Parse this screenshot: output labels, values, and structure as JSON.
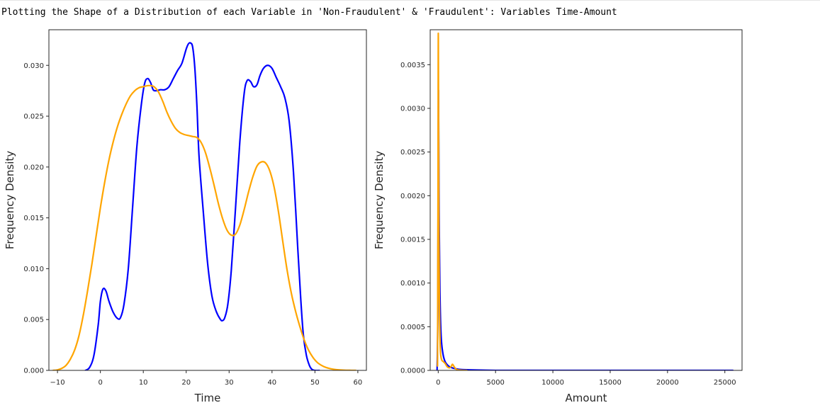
{
  "output_text": "Plotting the Shape of a Distribution of each Variable in 'Non-Fraudulent' & 'Fraudulent': Variables Time-Amount",
  "colors": {
    "non_fraudulent": "#0000ff",
    "fraudulent": "#ffa500",
    "axes": "#262626"
  },
  "chart_data": [
    {
      "type": "line",
      "xlabel": "Time",
      "ylabel": "Frequency Density",
      "xlim": [
        -12,
        62
      ],
      "ylim": [
        0,
        0.0335
      ],
      "xticks": [
        -10,
        0,
        10,
        20,
        30,
        40,
        50,
        60
      ],
      "xtick_labels": [
        "−10",
        "0",
        "10",
        "20",
        "30",
        "40",
        "50",
        "60"
      ],
      "yticks": [
        0,
        0.005,
        0.01,
        0.015,
        0.02,
        0.025,
        0.03
      ],
      "ytick_labels": [
        "0.000",
        "0.005",
        "0.010",
        "0.015",
        "0.020",
        "0.025",
        "0.030"
      ],
      "series": [
        {
          "color": "#0000ff",
          "x": [
            -3.5,
            -2.5,
            -1.5,
            -0.5,
            0,
            0.6,
            1.3,
            2,
            3,
            4,
            4.7,
            5.5,
            6.5,
            7.5,
            8.5,
            9.5,
            10.3,
            11,
            11.7,
            12.3,
            13,
            14,
            15,
            16,
            17,
            18,
            19,
            20,
            20.5,
            21,
            21.5,
            22,
            22.5,
            23,
            24,
            25,
            26,
            27,
            28,
            28.5,
            29,
            29.7,
            30.5,
            31.5,
            32.5,
            33.5,
            34.2,
            35,
            35.7,
            36.5,
            37.2,
            38,
            39,
            40,
            41,
            42,
            43,
            44,
            45,
            46,
            46.7,
            47.3,
            48,
            48.7,
            49.3,
            50,
            51
          ],
          "y": [
            0,
            0.0003,
            0.0015,
            0.0045,
            0.0068,
            0.008,
            0.0078,
            0.0068,
            0.0057,
            0.0051,
            0.0052,
            0.0065,
            0.01,
            0.016,
            0.022,
            0.026,
            0.0282,
            0.0287,
            0.0283,
            0.0276,
            0.0275,
            0.0276,
            0.0276,
            0.0279,
            0.0287,
            0.0295,
            0.0302,
            0.0316,
            0.0321,
            0.0322,
            0.0318,
            0.0298,
            0.026,
            0.021,
            0.0155,
            0.0105,
            0.0073,
            0.0058,
            0.005,
            0.0049,
            0.0052,
            0.0065,
            0.0098,
            0.016,
            0.0225,
            0.0272,
            0.0285,
            0.0284,
            0.0279,
            0.0281,
            0.029,
            0.0297,
            0.03,
            0.0297,
            0.0288,
            0.0279,
            0.0268,
            0.0245,
            0.0195,
            0.012,
            0.007,
            0.0035,
            0.0015,
            0.0005,
            0.0001,
            0,
            0
          ]
        },
        {
          "color": "#ffa500",
          "x": [
            -11,
            -10,
            -9,
            -8,
            -7,
            -6,
            -5,
            -4,
            -3,
            -2,
            -1,
            0,
            1,
            2,
            3,
            4,
            5,
            6,
            7,
            8,
            9,
            10,
            11,
            11.7,
            12.5,
            13.5,
            14.5,
            15.5,
            16.5,
            17.5,
            18.5,
            19.5,
            20.5,
            21.5,
            22.5,
            23.5,
            24.5,
            25.5,
            26.5,
            27.5,
            28.5,
            29.5,
            30.5,
            31.5,
            32.5,
            33.5,
            34.5,
            35.5,
            36.5,
            37.5,
            38.5,
            39.5,
            40.5,
            41.5,
            42.5,
            43.5,
            44.5,
            45.5,
            46.5,
            47.5,
            48.5,
            49.5,
            50.5,
            51.5,
            52.5,
            53.5,
            54.5,
            55.5,
            56.5,
            57.5,
            58.5,
            59.5
          ],
          "y": [
            0,
            5e-05,
            0.0002,
            0.0005,
            0.0011,
            0.002,
            0.0034,
            0.0054,
            0.0078,
            0.0104,
            0.0132,
            0.016,
            0.0185,
            0.0207,
            0.0225,
            0.024,
            0.0252,
            0.0262,
            0.027,
            0.0275,
            0.0278,
            0.0279,
            0.028,
            0.028,
            0.0279,
            0.0274,
            0.0265,
            0.0254,
            0.0245,
            0.0238,
            0.0234,
            0.0232,
            0.0231,
            0.023,
            0.0229,
            0.0224,
            0.0214,
            0.0199,
            0.0182,
            0.0164,
            0.0149,
            0.0138,
            0.0133,
            0.0134,
            0.0143,
            0.0158,
            0.0175,
            0.019,
            0.0201,
            0.0205,
            0.0204,
            0.0196,
            0.018,
            0.0156,
            0.0127,
            0.0099,
            0.0076,
            0.0058,
            0.0043,
            0.003,
            0.002,
            0.0013,
            0.0008,
            0.0005,
            0.0003,
            0.00018,
            0.0001,
            5e-05,
            3e-05,
            1e-05,
            5e-06,
            0
          ]
        }
      ]
    },
    {
      "type": "line",
      "xlabel": "Amount",
      "ylabel": "Frequency Density",
      "xlim": [
        -700,
        26500
      ],
      "ylim": [
        0,
        0.0039
      ],
      "xticks": [
        0,
        5000,
        10000,
        15000,
        20000,
        25000
      ],
      "xtick_labels": [
        "0",
        "5000",
        "10000",
        "15000",
        "20000",
        "25000"
      ],
      "yticks": [
        0,
        0.0005,
        0.001,
        0.0015,
        0.002,
        0.0025,
        0.003,
        0.0035
      ],
      "ytick_labels": [
        "0.0000",
        "0.0005",
        "0.0010",
        "0.0015",
        "0.0020",
        "0.0025",
        "0.0030",
        "0.0035"
      ],
      "series": [
        {
          "color": "#0000ff",
          "x": [
            -100,
            -40,
            0,
            20,
            40,
            80,
            150,
            250,
            400,
            600,
            900,
            1200,
            1500,
            2000,
            3000,
            5000,
            10000,
            15000,
            20000,
            25700
          ],
          "y": [
            0,
            0.0006,
            0.0025,
            0.0032,
            0.0028,
            0.0018,
            0.0009,
            0.0004,
            0.0002,
            0.0001,
            5e-05,
            3e-05,
            2e-05,
            1e-05,
            5e-06,
            0,
            0,
            0,
            0,
            0
          ]
        },
        {
          "color": "#ffa500",
          "x": [
            -60,
            -20,
            0,
            10,
            30,
            60,
            100,
            150,
            200,
            300,
            450,
            600,
            800,
            1000,
            1150,
            1250,
            1400,
            1600,
            2000,
            2500
          ],
          "y": [
            5e-05,
            0.002,
            0.0036,
            0.0038,
            0.003,
            0.0016,
            0.0008,
            0.0004,
            0.0002,
            0.00012,
            0.0001,
            8e-05,
            4e-05,
            3e-05,
            5e-05,
            7e-05,
            4e-05,
            1e-05,
            2e-06,
            0
          ]
        }
      ]
    }
  ]
}
